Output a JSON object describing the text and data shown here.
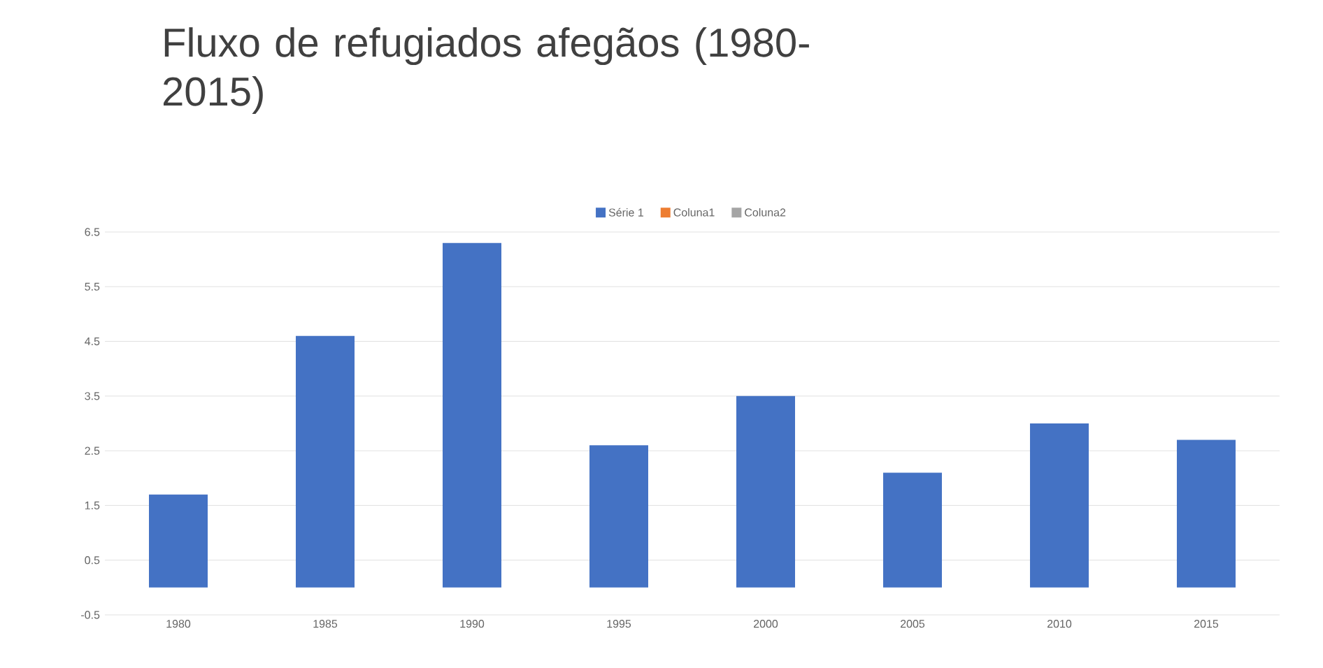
{
  "chart_data": {
    "type": "bar",
    "title": "Fluxo de refugiados afegãos (1980-2015)",
    "categories": [
      "1980",
      "1985",
      "1990",
      "1995",
      "2000",
      "2005",
      "2010",
      "2015"
    ],
    "series": [
      {
        "name": "Série 1",
        "color": "#4472c4",
        "values": [
          1.7,
          4.6,
          6.3,
          2.6,
          3.5,
          2.1,
          3.0,
          2.7
        ]
      },
      {
        "name": "Coluna1",
        "color": "#ed7d31",
        "values": [
          null,
          null,
          null,
          null,
          null,
          null,
          null,
          null
        ]
      },
      {
        "name": "Coluna2",
        "color": "#a5a5a5",
        "values": [
          null,
          null,
          null,
          null,
          null,
          null,
          null,
          null
        ]
      }
    ],
    "ylim": [
      -0.5,
      6.5
    ],
    "yticks": [
      -0.5,
      0.5,
      1.5,
      2.5,
      3.5,
      4.5,
      5.5,
      6.5
    ],
    "grid": "y",
    "legend": "top"
  }
}
